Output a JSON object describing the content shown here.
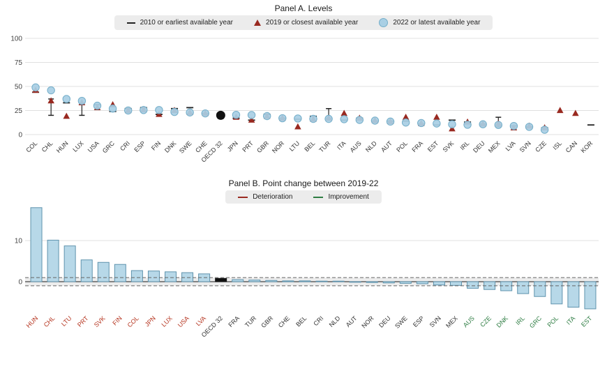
{
  "panelA": {
    "title": "Panel A. Levels",
    "legend": [
      {
        "marker": "dash",
        "label": "2010  or earliest available year"
      },
      {
        "marker": "triangle",
        "label": "2019  or closest available year"
      },
      {
        "marker": "circle",
        "label": "2022  or latest available year"
      }
    ]
  },
  "panelB": {
    "title": "Panel B. Point change between 2019-22",
    "legend": [
      {
        "marker": "line-red",
        "label": "Deterioration"
      },
      {
        "marker": "line-green",
        "label": "Improvement"
      }
    ]
  },
  "colors": {
    "dash": "#222222",
    "triangle": "#992920",
    "circle": "#a9cfe4",
    "circle_border": "#74aec9",
    "bar": "#b7d8e8",
    "bar_border": "#5f93ad",
    "highlight": "#111111",
    "deterioration": "#992920",
    "improvement": "#2e7d43",
    "grid": "#e0e0e0",
    "zero_line": "#444444",
    "threshold_dash": "#666666",
    "band": "#ededed",
    "label_red": "#b5341f",
    "label_green": "#2e7d43",
    "label_black": "#333333",
    "tick_text": "#444444"
  },
  "chart_data": [
    {
      "type": "scatter",
      "title": "Panel A. Levels",
      "ylim": [
        0,
        100
      ],
      "yticks": [
        0,
        25,
        50,
        75,
        100
      ],
      "highlight": "OECD 32",
      "legend": [
        "2010 or earliest available year",
        "2019 or closest available year",
        "2022 or latest available year"
      ],
      "points": [
        {
          "country": "COL",
          "y2010": 44,
          "y2019": 46,
          "y2022": 49
        },
        {
          "country": "CHL",
          "y2010": null,
          "y2019": 35,
          "y2022": 46,
          "whisker": [
            20,
            37
          ]
        },
        {
          "country": "HUN",
          "y2010": 33,
          "y2019": 19,
          "y2022": 37
        },
        {
          "country": "LUX",
          "y2010": null,
          "y2019": 33,
          "y2022": 35,
          "whisker": [
            20,
            32
          ]
        },
        {
          "country": "USA",
          "y2010": 31,
          "y2019": 28,
          "y2022": 30
        },
        {
          "country": "GRC",
          "y2010": 24,
          "y2019": 31,
          "y2022": 27
        },
        {
          "country": "CRI",
          "y2010": 27,
          "y2019": 25,
          "y2022": 25
        },
        {
          "country": "ESP",
          "y2010": 28,
          "y2019": 26,
          "y2022": 25.5
        },
        {
          "country": "FIN",
          "y2010": 21,
          "y2019": 21,
          "y2022": 25.5
        },
        {
          "country": "DNK",
          "y2010": 27,
          "y2019": 25,
          "y2022": 23.5
        },
        {
          "country": "SWE",
          "y2010": 28,
          "y2019": 23,
          "y2022": 23
        },
        {
          "country": "CHE",
          "y2010": 22,
          "y2019": 22,
          "y2022": 22
        },
        {
          "country": "OECD 32",
          "y2010": 20,
          "y2019": 19,
          "y2022": 20
        },
        {
          "country": "JPN",
          "y2010": 17,
          "y2019": 18,
          "y2022": 20.5
        },
        {
          "country": "PRT",
          "y2010": 15,
          "y2019": 15,
          "y2022": 20.3
        },
        {
          "country": "GBR",
          "y2010": 21,
          "y2019": 19,
          "y2022": 19.2
        },
        {
          "country": "NOR",
          "y2010": 17,
          "y2019": 17,
          "y2022": 17
        },
        {
          "country": "LTU",
          "y2010": 16,
          "y2019": 8,
          "y2022": 16.7
        },
        {
          "country": "BEL",
          "y2010": 19,
          "y2019": 16,
          "y2022": 16.3
        },
        {
          "country": "TUR",
          "y2010": null,
          "y2019": 17,
          "y2022": 16.3,
          "whisker": [
            17,
            27
          ]
        },
        {
          "country": "ITA",
          "y2010": 15,
          "y2019": 22,
          "y2022": 16
        },
        {
          "country": "AUS",
          "y2010": 17,
          "y2019": 17,
          "y2022": 15.2
        },
        {
          "country": "NLD",
          "y2010": 14,
          "y2019": 14.5,
          "y2022": 14.5
        },
        {
          "country": "AUT",
          "y2010": 14,
          "y2019": 13.5,
          "y2022": 13.5
        },
        {
          "country": "POL",
          "y2010": 14,
          "y2019": 18,
          "y2022": 12.5
        },
        {
          "country": "FRA",
          "y2010": 11,
          "y2019": 11.5,
          "y2022": 12
        },
        {
          "country": "EST",
          "y2010": 10,
          "y2019": 18,
          "y2022": 11.5
        },
        {
          "country": "SVK",
          "y2010": 15,
          "y2019": 6,
          "y2022": 10.7
        },
        {
          "country": "IRL",
          "y2010": 13,
          "y2019": 13,
          "y2022": 10.2
        },
        {
          "country": "DEU",
          "y2010": 11,
          "y2019": 11,
          "y2022": 10.7
        },
        {
          "country": "MEX",
          "y2010": null,
          "y2019": 11.5,
          "y2022": 10,
          "whisker": [
            8,
            18
          ]
        },
        {
          "country": "LVA",
          "y2010": 9,
          "y2019": 7,
          "y2022": 8.9
        },
        {
          "country": "SVN",
          "y2010": 8,
          "y2019": 8.8,
          "y2022": 8
        },
        {
          "country": "CZE",
          "y2010": 7,
          "y2019": 7,
          "y2022": 5
        },
        {
          "country": "ISL",
          "y2010": null,
          "y2019": 25,
          "y2022": null
        },
        {
          "country": "CAN",
          "y2010": null,
          "y2019": 22,
          "y2022": null
        },
        {
          "country": "KOR",
          "y2010": 10,
          "y2019": null,
          "y2022": null
        }
      ]
    },
    {
      "type": "bar",
      "title": "Panel B. Point change between 2019-22",
      "yticks": [
        0,
        10
      ],
      "thresholds": [
        -1,
        1
      ],
      "highlight": "OECD 32",
      "categories": [
        "HUN",
        "CHL",
        "LTU",
        "PRT",
        "SVK",
        "FIN",
        "COL",
        "JPN",
        "LUX",
        "USA",
        "LVA",
        "OECD 32",
        "FRA",
        "TUR",
        "GBR",
        "CHE",
        "BEL",
        "CRI",
        "NLD",
        "AUT",
        "NOR",
        "DEU",
        "SWE",
        "ESP",
        "SVN",
        "MEX",
        "AUS",
        "CZE",
        "DNK",
        "IRL",
        "GRC",
        "POL",
        "ITA",
        "EST"
      ],
      "values": [
        18,
        10.1,
        8.7,
        5.3,
        4.7,
        4.2,
        2.7,
        2.6,
        2.4,
        2.2,
        1.9,
        0.8,
        0.5,
        0.4,
        0.3,
        0.2,
        0.2,
        0.1,
        0.1,
        -0.1,
        -0.2,
        -0.3,
        -0.4,
        -0.5,
        -0.8,
        -0.9,
        -1.6,
        -1.9,
        -2.2,
        -2.9,
        -3.6,
        -5.4,
        -6.2,
        -6.6
      ],
      "label_class": [
        "red",
        "red",
        "red",
        "red",
        "red",
        "red",
        "red",
        "red",
        "red",
        "red",
        "red",
        "black",
        "black",
        "black",
        "black",
        "black",
        "black",
        "black",
        "black",
        "black",
        "black",
        "black",
        "black",
        "black",
        "black",
        "black",
        "green",
        "green",
        "green",
        "green",
        "green",
        "green",
        "green",
        "green"
      ]
    }
  ]
}
